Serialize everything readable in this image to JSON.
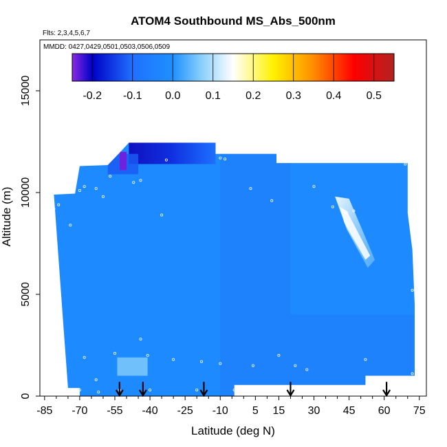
{
  "chart_data": {
    "type": "heatmap",
    "title": "ATOM4 Southbound MS_Abs_500nm",
    "subtitle_flights": "Flts: 2,3,4,5,6,7",
    "subtitle_dates": "MMDD: 0427,0429,0501,0503,0506,0509",
    "xlabel": "Latitude (deg N)",
    "ylabel": "Altitude (m)",
    "xlim": [
      -87,
      78
    ],
    "ylim": [
      0,
      17500
    ],
    "x_ticks": [
      -85,
      -70,
      -55,
      -40,
      -25,
      -10,
      5,
      15,
      30,
      45,
      60,
      75
    ],
    "y_ticks": [
      0,
      5000,
      10000,
      15000
    ],
    "colorbar": {
      "range": [
        -0.25,
        0.55
      ],
      "ticks": [
        -0.2,
        -0.1,
        0.0,
        0.1,
        0.2,
        0.3,
        0.4,
        0.5
      ],
      "tick_labels": [
        "-0.2",
        "-0.1",
        "0.0",
        "0.1",
        "0.2",
        "0.3",
        "0.4",
        "0.5"
      ],
      "stops": [
        {
          "v": -0.25,
          "color": "#8a2be2"
        },
        {
          "v": -0.2,
          "color": "#0000c8"
        },
        {
          "v": -0.1,
          "color": "#2070ff"
        },
        {
          "v": 0.0,
          "color": "#1e90ff"
        },
        {
          "v": 0.07,
          "color": "#87cefa"
        },
        {
          "v": 0.15,
          "color": "#ffffff"
        },
        {
          "v": 0.25,
          "color": "#fff200"
        },
        {
          "v": 0.35,
          "color": "#ff8c00"
        },
        {
          "v": 0.45,
          "color": "#ff0000"
        },
        {
          "v": 0.55,
          "color": "#b22222"
        }
      ]
    },
    "base_value": -0.02,
    "domain_polygon": [
      [
        -81,
        9900
      ],
      [
        -72,
        9950
      ],
      [
        -70,
        11300
      ],
      [
        -58,
        11350
      ],
      [
        -53,
        11950
      ],
      [
        -49,
        12450
      ],
      [
        -12,
        12450
      ],
      [
        -12,
        11900
      ],
      [
        14,
        11900
      ],
      [
        14,
        11450
      ],
      [
        70,
        11450
      ],
      [
        70,
        9000
      ],
      [
        72,
        7200
      ],
      [
        73,
        4500
      ],
      [
        73,
        1000
      ],
      [
        52,
        1000
      ],
      [
        52,
        550
      ],
      [
        -4,
        550
      ],
      [
        -4,
        0
      ],
      [
        -70,
        0
      ],
      [
        -70,
        400
      ],
      [
        -75,
        400
      ],
      [
        -77,
        3500
      ]
    ],
    "features": [
      {
        "lat_range": [
          -49,
          -12
        ],
        "alt_range": [
          11400,
          12450
        ],
        "value": -0.2
      },
      {
        "lat_range": [
          -58,
          -45
        ],
        "alt_range": [
          10900,
          11900
        ],
        "value": -0.12
      },
      {
        "lat_range": [
          -53,
          -50
        ],
        "alt_range": [
          11100,
          12000
        ],
        "value": -0.24
      },
      {
        "lat_range": [
          -54,
          -41
        ],
        "alt_range": [
          1000,
          1900
        ],
        "value": 0.06
      },
      {
        "lat_range": [
          38,
          50
        ],
        "alt_range": [
          6300,
          9800
        ],
        "value": 0.12
      }
    ],
    "observation_points": [
      [
        -72,
        11500
      ],
      [
        -62,
        11450
      ],
      [
        -57,
        10800
      ],
      [
        -47,
        10500
      ],
      [
        -44,
        10600
      ],
      [
        -33,
        11600
      ],
      [
        -5,
        12400
      ],
      [
        -10,
        11700
      ],
      [
        -8,
        11650
      ],
      [
        3,
        10200
      ],
      [
        12,
        9600
      ],
      [
        30,
        10300
      ],
      [
        38,
        9300
      ],
      [
        44,
        9000
      ],
      [
        47,
        9100
      ],
      [
        69,
        11400
      ],
      [
        -78,
        10000
      ],
      [
        -79,
        9400
      ],
      [
        -81,
        9200
      ],
      [
        -68,
        10300
      ],
      [
        -70,
        10100
      ],
      [
        -60,
        9800
      ],
      [
        -74,
        8400
      ],
      [
        -35,
        8900
      ],
      [
        -63,
        10200
      ],
      [
        -44,
        2800
      ],
      [
        -55,
        2100
      ],
      [
        -41,
        2000
      ],
      [
        -30,
        1800
      ],
      [
        -18,
        1700
      ],
      [
        -10,
        1600
      ],
      [
        4,
        1500
      ],
      [
        15,
        2000
      ],
      [
        22,
        1500
      ],
      [
        27,
        1300
      ],
      [
        52,
        1800
      ],
      [
        72,
        1100
      ],
      [
        -63,
        800
      ],
      [
        -70,
        300
      ],
      [
        -62,
        200
      ],
      [
        -53,
        300
      ],
      [
        -40,
        300
      ],
      [
        -20,
        300
      ],
      [
        -4,
        300
      ],
      [
        11,
        350
      ],
      [
        72,
        5200
      ],
      [
        -68,
        1900
      ]
    ],
    "flight_markers_lat": [
      -53,
      -43,
      -17,
      20,
      61
    ]
  }
}
